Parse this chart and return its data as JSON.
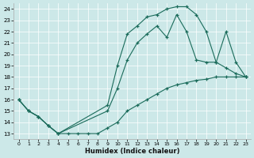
{
  "xlabel": "Humidex (Indice chaleur)",
  "bg_color": "#cce8e8",
  "line_color": "#1a6b5a",
  "xlim": [
    -0.5,
    23.5
  ],
  "ylim": [
    12.5,
    24.5
  ],
  "xticks": [
    0,
    1,
    2,
    3,
    4,
    5,
    6,
    7,
    8,
    9,
    10,
    11,
    12,
    13,
    14,
    15,
    16,
    17,
    18,
    19,
    20,
    21,
    22,
    23
  ],
  "yticks": [
    13,
    14,
    15,
    16,
    17,
    18,
    19,
    20,
    21,
    22,
    23,
    24
  ],
  "curve1_x": [
    0,
    1,
    2,
    3,
    4,
    5,
    6,
    7,
    8,
    9,
    10,
    11,
    12,
    13,
    14,
    15,
    16,
    17,
    18,
    19,
    20,
    21,
    22,
    23
  ],
  "curve1_y": [
    16.0,
    15.0,
    14.5,
    13.7,
    13.0,
    13.0,
    13.0,
    13.0,
    13.0,
    13.5,
    14.0,
    15.0,
    15.5,
    16.0,
    16.5,
    17.0,
    17.3,
    17.5,
    17.7,
    17.8,
    18.0,
    18.0,
    18.0,
    18.0
  ],
  "curve2_x": [
    0,
    1,
    2,
    3,
    4,
    9,
    10,
    11,
    12,
    13,
    14,
    15,
    16,
    17,
    18,
    19,
    20,
    21,
    22,
    23
  ],
  "curve2_y": [
    16.0,
    15.0,
    14.5,
    13.7,
    13.0,
    15.0,
    17.0,
    19.5,
    21.0,
    21.8,
    22.5,
    21.5,
    23.5,
    22.0,
    19.5,
    19.3,
    19.3,
    22.0,
    19.3,
    18.0
  ],
  "curve3_x": [
    0,
    1,
    2,
    3,
    4,
    9,
    10,
    11,
    12,
    13,
    14,
    15,
    16,
    17,
    18,
    19,
    20,
    21,
    22,
    23
  ],
  "curve3_y": [
    16.0,
    15.0,
    14.5,
    13.7,
    13.0,
    15.5,
    19.0,
    21.8,
    22.5,
    23.3,
    23.5,
    24.0,
    24.2,
    24.2,
    23.5,
    22.0,
    19.3,
    18.8,
    18.3,
    18.0
  ]
}
